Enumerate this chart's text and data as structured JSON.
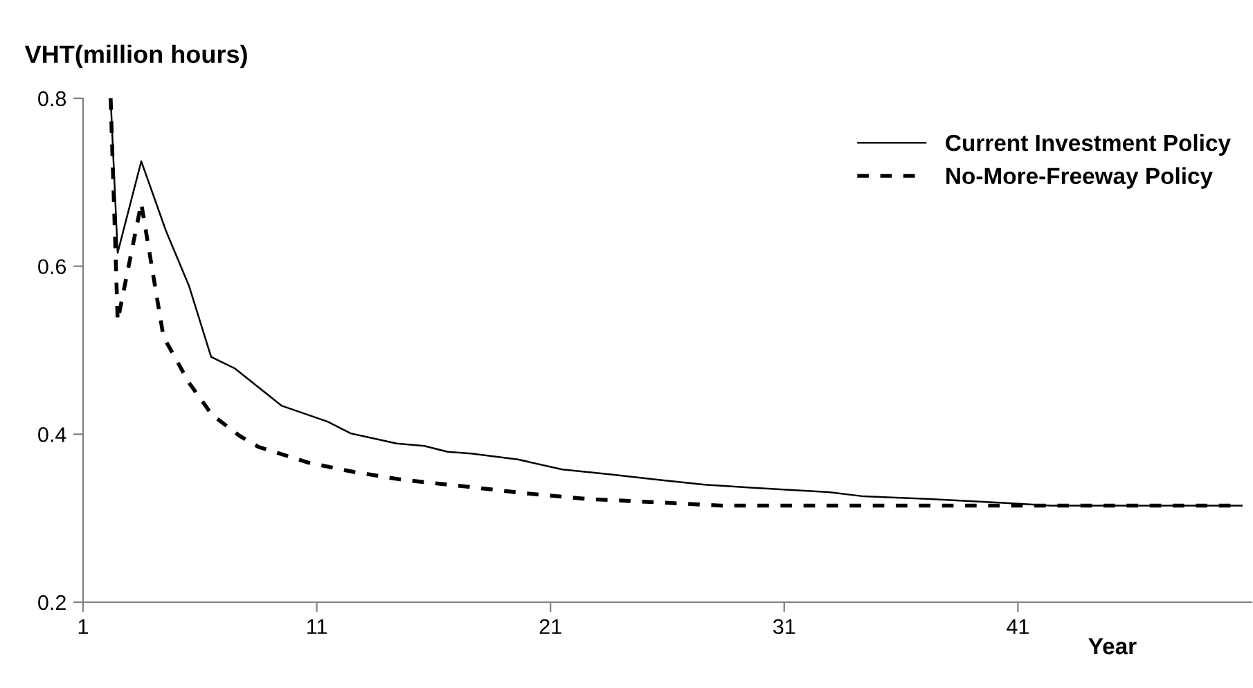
{
  "chart_data": {
    "type": "line",
    "ylabel": "VHT(million hours)",
    "xlabel": "Year",
    "xlim": [
      1,
      51
    ],
    "xticks": [
      1,
      11,
      21,
      31,
      41
    ],
    "ylim": [
      0.2,
      0.8
    ],
    "yticks": [
      0.2,
      0.4,
      0.6,
      0.8
    ],
    "grid": false,
    "legend": "top right",
    "marker": "none",
    "series": [
      {
        "name": "Current Investment Policy",
        "color": "#000000",
        "line_style": "solid",
        "x": [
          2.18,
          2.48,
          3.49,
          4.55,
          5.54,
          6.48,
          7.51,
          9.49,
          11.46,
          12.45,
          14.42,
          15.6,
          16.6,
          17.6,
          19.6,
          21.5,
          23.6,
          25.5,
          27.6,
          29.8,
          32.9,
          34.4,
          37.1,
          40.5,
          42.4,
          50.6
        ],
        "values": [
          0.8,
          0.616,
          0.725,
          0.642,
          0.576,
          0.492,
          0.478,
          0.434,
          0.415,
          0.401,
          0.389,
          0.386,
          0.379,
          0.377,
          0.37,
          0.358,
          0.352,
          0.346,
          0.34,
          0.336,
          0.331,
          0.326,
          0.323,
          0.318,
          0.315,
          0.315
        ]
      },
      {
        "name": "No-More-Freeway Policy",
        "color": "#000000",
        "line_style": "dashed",
        "x": [
          2.18,
          2.48,
          3.49,
          4.44,
          5.54,
          6.52,
          7.7,
          8.5,
          10.66,
          12.6,
          14.6,
          17.6,
          19.8,
          22.5,
          25.5,
          28.3,
          50.6
        ],
        "values": [
          0.8,
          0.535,
          0.675,
          0.516,
          0.461,
          0.423,
          0.398,
          0.385,
          0.366,
          0.355,
          0.346,
          0.337,
          0.33,
          0.323,
          0.319,
          0.315,
          0.315
        ]
      }
    ]
  }
}
